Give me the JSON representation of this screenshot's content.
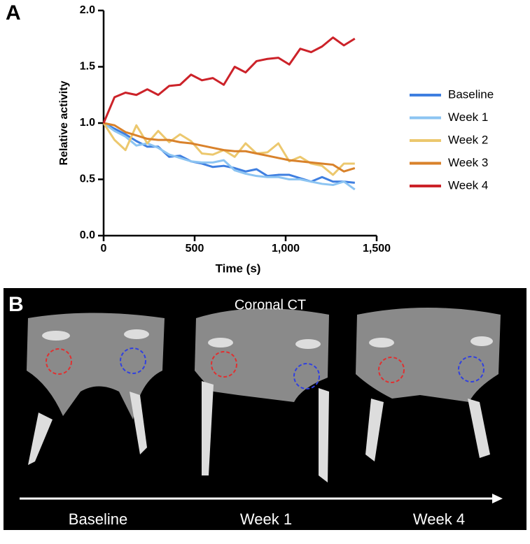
{
  "panel_labels": [
    "A",
    "B"
  ],
  "chart_data": {
    "type": "line",
    "x_label": "Time (s)",
    "y_label": "Relative activity",
    "x": [
      0,
      60,
      120,
      180,
      240,
      300,
      360,
      420,
      480,
      540,
      600,
      660,
      720,
      780,
      840,
      900,
      960,
      1020,
      1080,
      1140,
      1200,
      1260,
      1320,
      1380
    ],
    "series": [
      {
        "name": "Baseline",
        "color": "#3f7fe0",
        "values": [
          1.0,
          0.95,
          0.9,
          0.84,
          0.79,
          0.79,
          0.7,
          0.71,
          0.66,
          0.64,
          0.61,
          0.62,
          0.6,
          0.57,
          0.59,
          0.53,
          0.54,
          0.54,
          0.51,
          0.48,
          0.52,
          0.48,
          0.48,
          0.47
        ]
      },
      {
        "name": "Week 1",
        "color": "#8cc4f2",
        "values": [
          1.0,
          0.93,
          0.88,
          0.8,
          0.82,
          0.78,
          0.72,
          0.69,
          0.66,
          0.65,
          0.65,
          0.67,
          0.58,
          0.55,
          0.53,
          0.52,
          0.52,
          0.5,
          0.5,
          0.48,
          0.46,
          0.45,
          0.48,
          0.41
        ]
      },
      {
        "name": "Week 2",
        "color": "#ecc86e",
        "values": [
          1.0,
          0.85,
          0.76,
          0.98,
          0.82,
          0.93,
          0.83,
          0.9,
          0.84,
          0.73,
          0.72,
          0.76,
          0.7,
          0.82,
          0.73,
          0.74,
          0.82,
          0.66,
          0.7,
          0.64,
          0.62,
          0.54,
          0.64,
          0.64
        ]
      },
      {
        "name": "Week 3",
        "color": "#d9822b",
        "values": [
          1.0,
          0.98,
          0.92,
          0.89,
          0.86,
          0.85,
          0.85,
          0.83,
          0.82,
          0.8,
          0.78,
          0.76,
          0.75,
          0.75,
          0.73,
          0.71,
          0.69,
          0.67,
          0.66,
          0.65,
          0.64,
          0.63,
          0.57,
          0.6
        ]
      },
      {
        "name": "Week 4",
        "color": "#cc2229",
        "values": [
          1.0,
          1.23,
          1.27,
          1.25,
          1.3,
          1.25,
          1.33,
          1.34,
          1.43,
          1.38,
          1.4,
          1.34,
          1.5,
          1.45,
          1.55,
          1.57,
          1.58,
          1.52,
          1.66,
          1.63,
          1.68,
          1.76,
          1.69,
          1.75
        ]
      }
    ],
    "xlim": [
      0,
      1500
    ],
    "ylim": [
      0,
      2
    ],
    "xticks": [
      0,
      500,
      {
        "value": 1000,
        "label": "1,000"
      },
      {
        "value": 1500,
        "label": "1,500"
      }
    ],
    "yticks": [
      {
        "value": 0,
        "label": "0.0"
      },
      {
        "value": 0.5,
        "label": "0.5"
      },
      {
        "value": 1,
        "label": "1.0"
      },
      {
        "value": 1.5,
        "label": "1.5"
      },
      {
        "value": 2,
        "label": "2.0"
      }
    ],
    "legend": "right"
  },
  "ct_panel": {
    "title": "Coronal CT",
    "labels": [
      "Baseline",
      "Week 1",
      "Week 4"
    ]
  }
}
